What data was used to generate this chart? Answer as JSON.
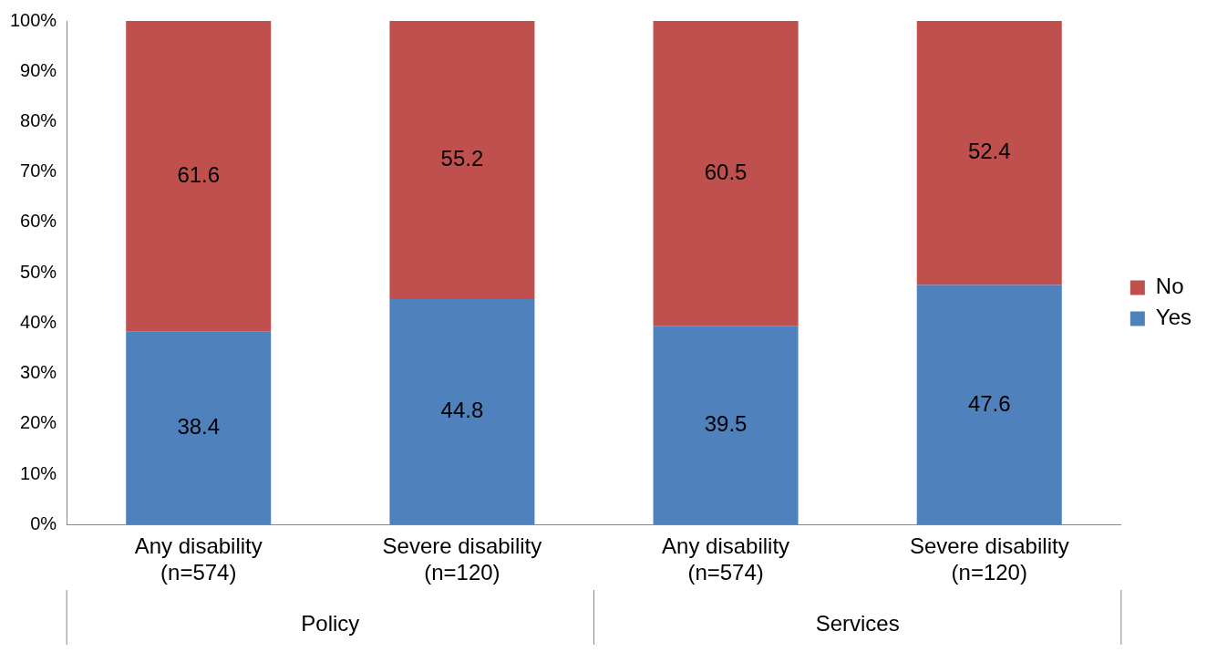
{
  "chart_data": {
    "type": "bar",
    "stacked": true,
    "categories": [
      "Any disability\n(n=574)",
      "Severe disability\n(n=120)",
      "Any disability\n(n=574)",
      "Severe disability\n(n=120)"
    ],
    "series": [
      {
        "name": "Yes",
        "color": "#4f81bd",
        "values": [
          38.4,
          44.8,
          39.5,
          47.6
        ]
      },
      {
        "name": "No",
        "color": "#c0504d",
        "values": [
          61.6,
          55.2,
          60.5,
          52.4
        ]
      }
    ],
    "ylim": [
      0,
      100
    ],
    "yticks": [
      {
        "value": 0,
        "label": "0%"
      },
      {
        "value": 10,
        "label": "10%"
      },
      {
        "value": 20,
        "label": "20%"
      },
      {
        "value": 30,
        "label": "30%"
      },
      {
        "value": 40,
        "label": "40%"
      },
      {
        "value": 50,
        "label": "50%"
      },
      {
        "value": 60,
        "label": "60%"
      },
      {
        "value": 70,
        "label": "70%"
      },
      {
        "value": 80,
        "label": "80%"
      },
      {
        "value": 90,
        "label": "90%"
      },
      {
        "value": 100,
        "label": "100%"
      }
    ],
    "data_labels": true,
    "legend": "right",
    "grid": false,
    "annotations": [
      "Policy",
      "Services"
    ]
  }
}
